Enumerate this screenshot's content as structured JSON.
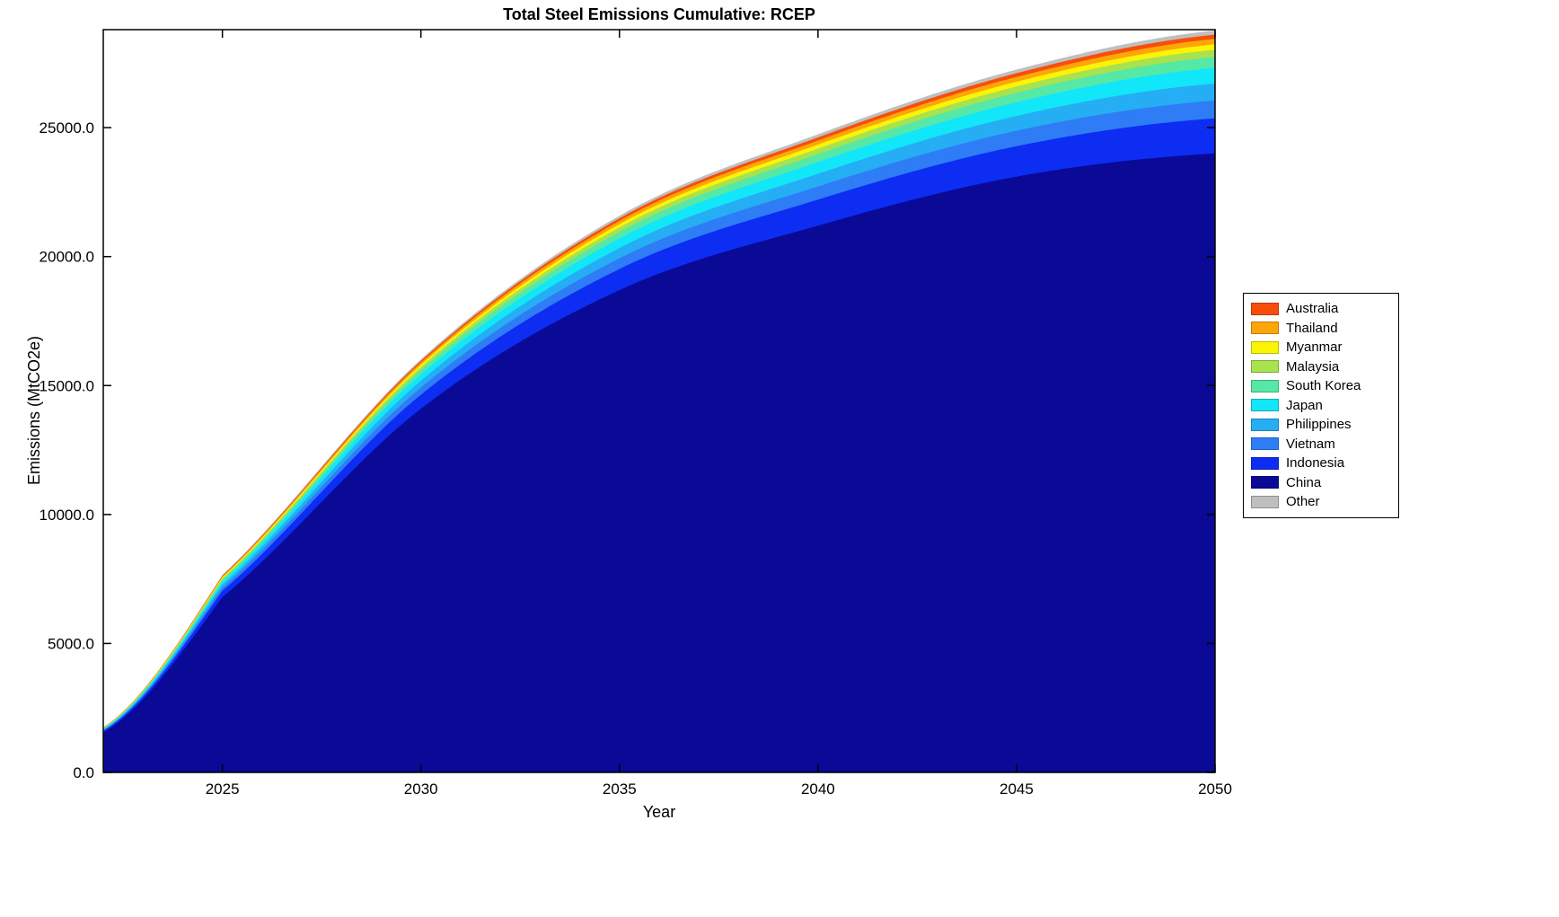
{
  "figure": {
    "background": "#FFFFFF",
    "axis_color": "#000000"
  },
  "chart_data": {
    "type": "area",
    "stacked": true,
    "title": "Total Steel Emissions Cumulative: RCEP",
    "xlabel": "Year",
    "ylabel": "Emissions (MtCO2e)",
    "xlim": [
      2022,
      2050
    ],
    "ylim": [
      0,
      28800
    ],
    "grid": false,
    "legend_position": "right-outside",
    "xticks": [
      2025,
      2030,
      2035,
      2040,
      2045,
      2050
    ],
    "xtick_labels": [
      "2025",
      "2030",
      "2035",
      "2040",
      "2045",
      "2050"
    ],
    "yticks": [
      0,
      5000,
      10000,
      15000,
      20000,
      25000
    ],
    "ytick_labels": [
      "0.0",
      "5000.0",
      "10000.0",
      "15000.0",
      "20000.0",
      "25000.0"
    ],
    "x": [
      2022,
      2025,
      2030,
      2035,
      2040,
      2045,
      2050
    ],
    "series": [
      {
        "name": "China",
        "color": "#0a0a96",
        "values": [
          1550,
          6800,
          14100,
          18700,
          21200,
          23100,
          24000
        ]
      },
      {
        "name": "Indonesia",
        "color": "#0e2df2",
        "values": [
          57,
          244,
          545,
          820,
          1010,
          1180,
          1360
        ]
      },
      {
        "name": "Vietnam",
        "color": "#2e7df6",
        "values": [
          29,
          124,
          277,
          415,
          510,
          600,
          690
        ]
      },
      {
        "name": "Philippines",
        "color": "#25aef3",
        "values": [
          28,
          119,
          265,
          400,
          490,
          575,
          660
        ]
      },
      {
        "name": "Japan",
        "color": "#12e7f9",
        "values": [
          26,
          110,
          247,
          370,
          455,
          530,
          610
        ]
      },
      {
        "name": "South Korea",
        "color": "#55e8a7",
        "values": [
          18,
          76,
          170,
          255,
          310,
          365,
          420
        ]
      },
      {
        "name": "Malaysia",
        "color": "#a8e24f",
        "values": [
          12,
          51,
          113,
          170,
          210,
          245,
          280
        ]
      },
      {
        "name": "Myanmar",
        "color": "#fbf505",
        "values": [
          9,
          38,
          85,
          128,
          157,
          185,
          210
        ]
      },
      {
        "name": "Thailand",
        "color": "#fca60a",
        "values": [
          9,
          38,
          85,
          128,
          157,
          185,
          210
        ]
      },
      {
        "name": "Australia",
        "color": "#f94d0a",
        "values": [
          7,
          30,
          67,
          100,
          123,
          145,
          165
        ]
      },
      {
        "name": "Other",
        "color": "#bfbfbf",
        "values": [
          7,
          29,
          65,
          98,
          120,
          140,
          160
        ]
      }
    ],
    "legend_order": [
      "Australia",
      "Thailand",
      "Myanmar",
      "Malaysia",
      "South Korea",
      "Japan",
      "Philippines",
      "Vietnam",
      "Indonesia",
      "China",
      "Other"
    ]
  }
}
